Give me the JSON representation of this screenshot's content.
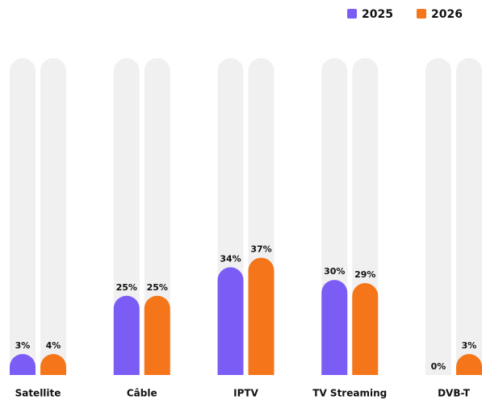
{
  "chart_data": {
    "type": "bar",
    "categories": [
      "Satellite",
      "Câble",
      "IPTV",
      "TV Streaming",
      "DVB-T"
    ],
    "series": [
      {
        "name": "2025",
        "color": "#7b5cf5",
        "values": [
          3,
          25,
          34,
          30,
          0
        ],
        "value_labels": [
          "3%",
          "25%",
          "34%",
          "30%",
          "0%"
        ]
      },
      {
        "name": "2026",
        "color": "#f5761a",
        "values": [
          4,
          25,
          37,
          29,
          3
        ],
        "value_labels": [
          "4%",
          "25%",
          "37%",
          "29%",
          "3%"
        ]
      }
    ],
    "ylim": [
      0,
      100
    ]
  }
}
